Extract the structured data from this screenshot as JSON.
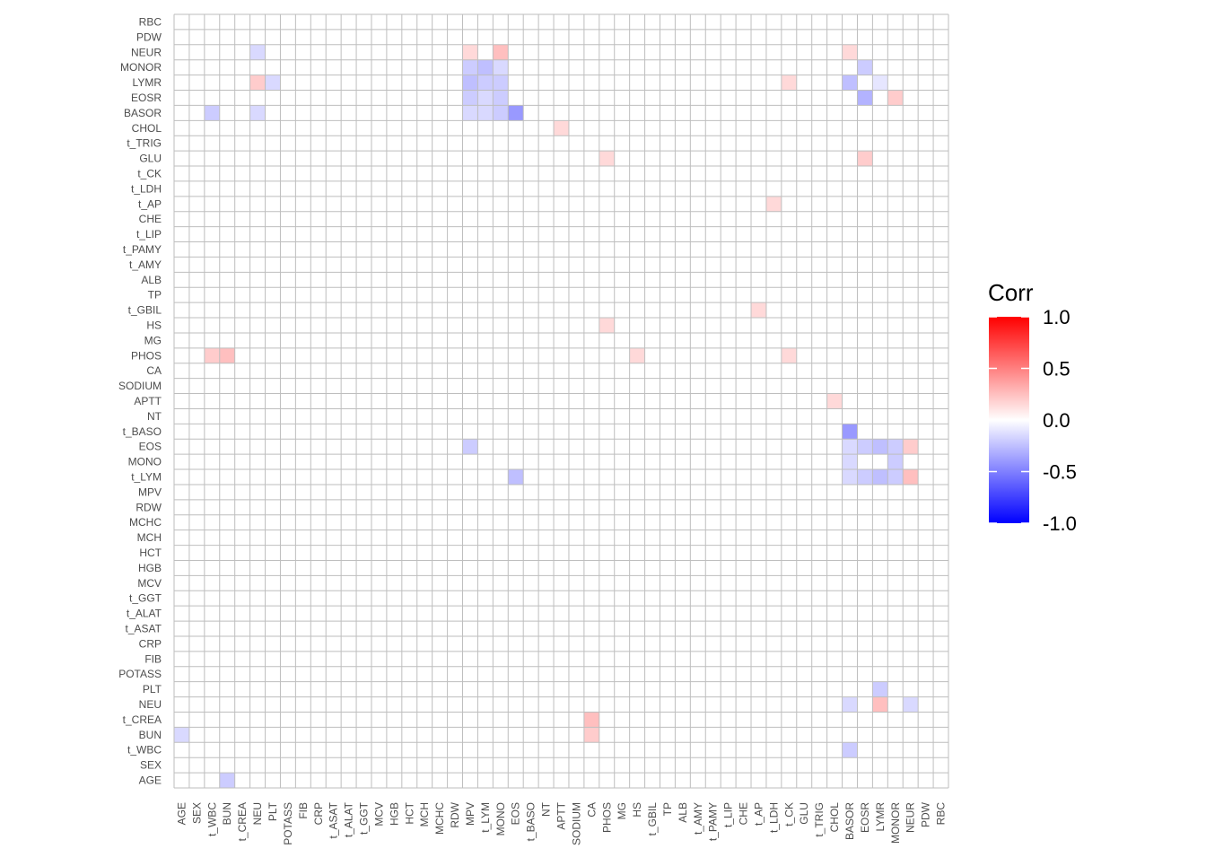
{
  "chart_data": {
    "type": "heatmap",
    "title": "",
    "xlabel": "",
    "ylabel": "",
    "x_categories": [
      "AGE",
      "SEX",
      "t_WBC",
      "BUN",
      "t_CREA",
      "NEU",
      "PLT",
      "POTASS",
      "FIB",
      "CRP",
      "t_ASAT",
      "t_ALAT",
      "t_GGT",
      "MCV",
      "HGB",
      "HCT",
      "MCH",
      "MCHC",
      "RDW",
      "MPV",
      "t_LYM",
      "MONO",
      "EOS",
      "t_BASO",
      "NT",
      "APTT",
      "SODIUM",
      "CA",
      "PHOS",
      "MG",
      "HS",
      "t_GBIL",
      "TP",
      "ALB",
      "t_AMY",
      "t_PAMY",
      "t_LIP",
      "CHE",
      "t_AP",
      "t_LDH",
      "t_CK",
      "GLU",
      "t_TRIG",
      "CHOL",
      "BASOR",
      "EOSR",
      "LYMR",
      "MONOR",
      "NEUR",
      "PDW",
      "RBC"
    ],
    "y_categories": [
      "AGE",
      "SEX",
      "t_WBC",
      "BUN",
      "t_CREA",
      "NEU",
      "PLT",
      "POTASS",
      "FIB",
      "CRP",
      "t_ASAT",
      "t_ALAT",
      "t_GGT",
      "MCV",
      "HGB",
      "HCT",
      "MCH",
      "MCHC",
      "RDW",
      "MPV",
      "t_LYM",
      "MONO",
      "EOS",
      "t_BASO",
      "NT",
      "APTT",
      "SODIUM",
      "CA",
      "PHOS",
      "MG",
      "HS",
      "t_GBIL",
      "TP",
      "ALB",
      "t_AMY",
      "t_PAMY",
      "t_LIP",
      "CHE",
      "t_AP",
      "t_LDH",
      "t_CK",
      "GLU",
      "t_TRIG",
      "CHOL",
      "BASOR",
      "EOSR",
      "LYMR",
      "MONOR",
      "NEUR",
      "PDW",
      "RBC"
    ],
    "cells": [
      {
        "x": "t_WBC",
        "y": "BASOR",
        "value": -0.2
      },
      {
        "x": "NEU",
        "y": "NEUR",
        "value": -0.15
      },
      {
        "x": "NEU",
        "y": "LYMR",
        "value": 0.2
      },
      {
        "x": "NEU",
        "y": "BASOR",
        "value": -0.15
      },
      {
        "x": "PLT",
        "y": "LYMR",
        "value": -0.15
      },
      {
        "x": "MPV",
        "y": "NEUR",
        "value": 0.15
      },
      {
        "x": "MPV",
        "y": "MONOR",
        "value": -0.2
      },
      {
        "x": "MPV",
        "y": "LYMR",
        "value": -0.25
      },
      {
        "x": "MPV",
        "y": "EOSR",
        "value": -0.2
      },
      {
        "x": "MPV",
        "y": "BASOR",
        "value": -0.15
      },
      {
        "x": "t_LYM",
        "y": "MONOR",
        "value": -0.25
      },
      {
        "x": "t_LYM",
        "y": "LYMR",
        "value": -0.2
      },
      {
        "x": "t_LYM",
        "y": "EOSR",
        "value": -0.15
      },
      {
        "x": "t_LYM",
        "y": "BASOR",
        "value": -0.15
      },
      {
        "x": "MONO",
        "y": "NEUR",
        "value": 0.25
      },
      {
        "x": "MONO",
        "y": "MONOR",
        "value": -0.15
      },
      {
        "x": "MONO",
        "y": "LYMR",
        "value": -0.2
      },
      {
        "x": "MONO",
        "y": "EOSR",
        "value": -0.2
      },
      {
        "x": "MONO",
        "y": "BASOR",
        "value": -0.2
      },
      {
        "x": "EOS",
        "y": "BASOR",
        "value": -0.4
      },
      {
        "x": "APTT",
        "y": "CHOL",
        "value": 0.15
      },
      {
        "x": "PHOS",
        "y": "GLU",
        "value": 0.15
      },
      {
        "x": "t_LDH",
        "y": "t_AP",
        "value": 0.15
      },
      {
        "x": "t_CK",
        "y": "LYMR",
        "value": 0.15
      },
      {
        "x": "BASOR",
        "y": "NEUR",
        "value": 0.15
      },
      {
        "x": "BASOR",
        "y": "LYMR",
        "value": -0.25
      },
      {
        "x": "EOSR",
        "y": "MONOR",
        "value": -0.2
      },
      {
        "x": "EOSR",
        "y": "EOSR",
        "value": -0.3
      },
      {
        "x": "EOSR",
        "y": "GLU",
        "value": 0.2
      },
      {
        "x": "LYMR",
        "y": "LYMR",
        "value": -0.1
      },
      {
        "x": "MONOR",
        "y": "EOSR",
        "value": 0.2
      },
      {
        "x": "PHOS",
        "y": "HS",
        "value": 0.15
      },
      {
        "x": "t_AP",
        "y": "t_GBIL",
        "value": 0.15
      },
      {
        "x": "t_WBC",
        "y": "PHOS",
        "value": 0.2
      },
      {
        "x": "BUN",
        "y": "PHOS",
        "value": 0.25
      },
      {
        "x": "HS",
        "y": "PHOS",
        "value": 0.15
      },
      {
        "x": "t_CK",
        "y": "PHOS",
        "value": 0.15
      },
      {
        "x": "CHOL",
        "y": "APTT",
        "value": 0.15
      },
      {
        "x": "BASOR",
        "y": "t_BASO",
        "value": -0.4
      },
      {
        "x": "MPV",
        "y": "EOS",
        "value": -0.2
      },
      {
        "x": "BASOR",
        "y": "EOS",
        "value": -0.15
      },
      {
        "x": "EOSR",
        "y": "EOS",
        "value": -0.2
      },
      {
        "x": "LYMR",
        "y": "EOS",
        "value": -0.25
      },
      {
        "x": "MONOR",
        "y": "EOS",
        "value": -0.2
      },
      {
        "x": "NEUR",
        "y": "EOS",
        "value": 0.2
      },
      {
        "x": "BASOR",
        "y": "MONO",
        "value": -0.15
      },
      {
        "x": "MONOR",
        "y": "MONO",
        "value": -0.2
      },
      {
        "x": "EOS",
        "y": "t_LYM",
        "value": -0.25
      },
      {
        "x": "BASOR",
        "y": "t_LYM",
        "value": -0.15
      },
      {
        "x": "EOSR",
        "y": "t_LYM",
        "value": -0.2
      },
      {
        "x": "LYMR",
        "y": "t_LYM",
        "value": -0.25
      },
      {
        "x": "MONOR",
        "y": "t_LYM",
        "value": -0.2
      },
      {
        "x": "NEUR",
        "y": "t_LYM",
        "value": 0.25
      },
      {
        "x": "LYMR",
        "y": "PLT",
        "value": -0.2
      },
      {
        "x": "BASOR",
        "y": "NEU",
        "value": -0.15
      },
      {
        "x": "LYMR",
        "y": "NEU",
        "value": 0.25
      },
      {
        "x": "NEUR",
        "y": "NEU",
        "value": -0.15
      },
      {
        "x": "CA",
        "y": "t_CREA",
        "value": 0.25
      },
      {
        "x": "CA",
        "y": "BUN",
        "value": 0.2
      },
      {
        "x": "AGE",
        "y": "BUN",
        "value": -0.15
      },
      {
        "x": "BASOR",
        "y": "t_WBC",
        "value": -0.2
      },
      {
        "x": "BUN",
        "y": "AGE",
        "value": -0.2
      }
    ],
    "legend": {
      "title": "Corr",
      "ticks": [
        1.0,
        0.5,
        0.0,
        -0.5,
        -1.0
      ],
      "tick_labels": [
        "1.0",
        "0.5",
        "0.0",
        "-0.5",
        "-1.0"
      ],
      "placement": "right",
      "colors": {
        "low": "#0000ff",
        "mid": "#ffffff",
        "high": "#ff0000"
      },
      "range": [
        -1,
        1
      ]
    },
    "grid": true,
    "grid_color": "#bebebe"
  }
}
